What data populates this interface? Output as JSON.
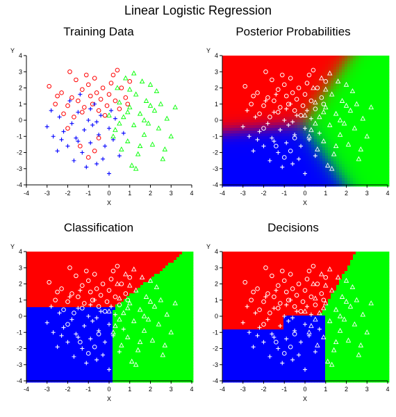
{
  "title": "Linear Logistic Regression",
  "colors": {
    "class1": "#ff0000",
    "class2": "#0000ff",
    "class3": "#00ff00",
    "axis": "#000000",
    "point_on_fill": "#ffffff"
  },
  "chart_data": [
    {
      "type": "scatter",
      "title": "Training Data",
      "xlabel": "X",
      "ylabel": "Y",
      "xlim": [
        -4,
        4
      ],
      "ylim": [
        -4,
        4
      ],
      "xticks": [
        "-4",
        "-3",
        "-2",
        "-1",
        "0",
        "1",
        "2",
        "3",
        "4"
      ],
      "yticks": [
        "-4",
        "-3",
        "-2",
        "-1",
        "0",
        "1",
        "2",
        "3",
        "4"
      ],
      "series": [
        {
          "marker": "circle",
          "color": "#ff0000",
          "points": [
            [
              -2.9,
              2.1
            ],
            [
              -2.6,
              1.0
            ],
            [
              -2.3,
              1.7
            ],
            [
              -2.0,
              0.9
            ],
            [
              -1.8,
              1.4
            ],
            [
              -1.6,
              2.5
            ],
            [
              -1.5,
              1.2
            ],
            [
              -1.3,
              1.9
            ],
            [
              -1.2,
              0.8
            ],
            [
              -1.0,
              2.2
            ],
            [
              -0.9,
              1.5
            ],
            [
              -0.8,
              1.0
            ],
            [
              -0.6,
              1.7
            ],
            [
              -0.5,
              0.6
            ],
            [
              -0.4,
              1.3
            ],
            [
              -0.3,
              2.0
            ],
            [
              -0.1,
              0.9
            ],
            [
              0.0,
              1.6
            ],
            [
              0.2,
              2.8
            ],
            [
              0.3,
              1.2
            ],
            [
              0.5,
              0.7
            ],
            [
              0.6,
              2.0
            ],
            [
              0.8,
              1.4
            ],
            [
              1.0,
              2.4
            ],
            [
              -1.4,
              -1.6
            ],
            [
              -1.0,
              -2.3
            ],
            [
              -0.7,
              -1.9
            ],
            [
              -2.2,
              0.4
            ],
            [
              -1.7,
              0.2
            ],
            [
              -0.2,
              0.3
            ],
            [
              0.4,
              3.1
            ],
            [
              -1.9,
              3.0
            ],
            [
              -1.1,
              2.8
            ],
            [
              -2.5,
              1.5
            ],
            [
              0.1,
              2.3
            ],
            [
              -0.7,
              2.6
            ],
            [
              -1.3,
              0.5
            ],
            [
              0.9,
              1.0
            ],
            [
              -2.0,
              -0.5
            ],
            [
              -0.5,
              -1.1
            ]
          ]
        },
        {
          "marker": "plus",
          "color": "#0000ff",
          "points": [
            [
              -3.0,
              -0.4
            ],
            [
              -2.7,
              -1.0
            ],
            [
              -2.4,
              0.2
            ],
            [
              -2.2,
              -0.7
            ],
            [
              -2.0,
              -1.6
            ],
            [
              -1.8,
              -0.2
            ],
            [
              -1.6,
              -1.1
            ],
            [
              -1.5,
              0.5
            ],
            [
              -1.3,
              -2.0
            ],
            [
              -1.2,
              -0.6
            ],
            [
              -1.0,
              0.0
            ],
            [
              -0.9,
              -1.4
            ],
            [
              -0.8,
              -0.3
            ],
            [
              -0.6,
              -2.7
            ],
            [
              -0.5,
              -0.9
            ],
            [
              -0.4,
              0.3
            ],
            [
              -0.2,
              -1.6
            ],
            [
              0.0,
              -0.5
            ],
            [
              0.2,
              -1.2
            ],
            [
              0.3,
              0.1
            ],
            [
              0.5,
              -2.2
            ],
            [
              0.7,
              -0.8
            ],
            [
              -1.9,
              1.2
            ],
            [
              -1.4,
              1.6
            ],
            [
              -0.7,
              1.0
            ],
            [
              -2.5,
              -1.9
            ],
            [
              -1.1,
              -2.9
            ],
            [
              0.0,
              -3.3
            ],
            [
              -1.7,
              -2.5
            ],
            [
              -0.3,
              -2.4
            ],
            [
              -2.8,
              0.6
            ],
            [
              -0.9,
              0.7
            ],
            [
              0.1,
              0.6
            ],
            [
              -1.5,
              -1.3
            ],
            [
              -2.3,
              -1.2
            ],
            [
              -0.6,
              -0.1
            ]
          ]
        },
        {
          "marker": "triangle",
          "color": "#00ff00",
          "points": [
            [
              0.0,
              0.3
            ],
            [
              0.3,
              -0.6
            ],
            [
              0.5,
              1.1
            ],
            [
              0.7,
              0.2
            ],
            [
              0.9,
              -1.3
            ],
            [
              1.0,
              0.8
            ],
            [
              1.2,
              -0.3
            ],
            [
              1.3,
              1.6
            ],
            [
              1.4,
              -2.1
            ],
            [
              1.5,
              0.4
            ],
            [
              1.7,
              -0.9
            ],
            [
              1.8,
              1.2
            ],
            [
              1.9,
              -0.2
            ],
            [
              2.0,
              2.2
            ],
            [
              2.1,
              -1.5
            ],
            [
              2.2,
              0.6
            ],
            [
              2.4,
              -0.5
            ],
            [
              2.5,
              1.0
            ],
            [
              2.6,
              -2.4
            ],
            [
              2.8,
              0.1
            ],
            [
              3.0,
              -1.0
            ],
            [
              3.2,
              0.8
            ],
            [
              0.4,
              2.0
            ],
            [
              0.8,
              2.6
            ],
            [
              1.6,
              2.4
            ],
            [
              2.3,
              1.8
            ],
            [
              1.1,
              -2.8
            ],
            [
              0.6,
              -1.8
            ],
            [
              1.3,
              -3.0
            ],
            [
              0.2,
              -1.0
            ],
            [
              1.0,
              1.9
            ],
            [
              1.7,
              0.0
            ],
            [
              2.7,
              -1.8
            ],
            [
              0.9,
              0.5
            ],
            [
              1.5,
              -1.6
            ],
            [
              2.0,
              0.9
            ],
            [
              0.5,
              -0.2
            ],
            [
              1.2,
              2.9
            ]
          ]
        }
      ]
    },
    {
      "type": "heatmap",
      "title": "Posterior Probabilities",
      "xlabel": "X",
      "ylabel": "Y",
      "xlim": [
        -4,
        4
      ],
      "ylim": [
        -4,
        4
      ],
      "xticks": [
        "-4",
        "-3",
        "-2",
        "-1",
        "0",
        "1",
        "2",
        "3",
        "4"
      ],
      "yticks": [
        "-4",
        "-3",
        "-2",
        "-1",
        "0",
        "1",
        "2",
        "3",
        "4"
      ],
      "overlay": "training points drawn in white"
    },
    {
      "type": "heatmap",
      "title": "Classification",
      "xlabel": "X",
      "ylabel": "Y",
      "xlim": [
        -4,
        4
      ],
      "ylim": [
        -4,
        4
      ],
      "xticks": [
        "-4",
        "-3",
        "-2",
        "-1",
        "0",
        "1",
        "2",
        "3",
        "4"
      ],
      "yticks": [
        "-4",
        "-3",
        "-2",
        "-1",
        "0",
        "1",
        "2",
        "3",
        "4"
      ],
      "overlay": "training points drawn in white"
    },
    {
      "type": "heatmap",
      "title": "Decisions",
      "xlabel": "X",
      "ylabel": "Y",
      "xlim": [
        -4,
        4
      ],
      "ylim": [
        -4,
        4
      ],
      "xticks": [
        "-4",
        "-3",
        "-2",
        "-1",
        "0",
        "1",
        "2",
        "3",
        "4"
      ],
      "yticks": [
        "-4",
        "-3",
        "-2",
        "-1",
        "0",
        "1",
        "2",
        "3",
        "4"
      ],
      "overlay": "training points drawn in white"
    }
  ]
}
